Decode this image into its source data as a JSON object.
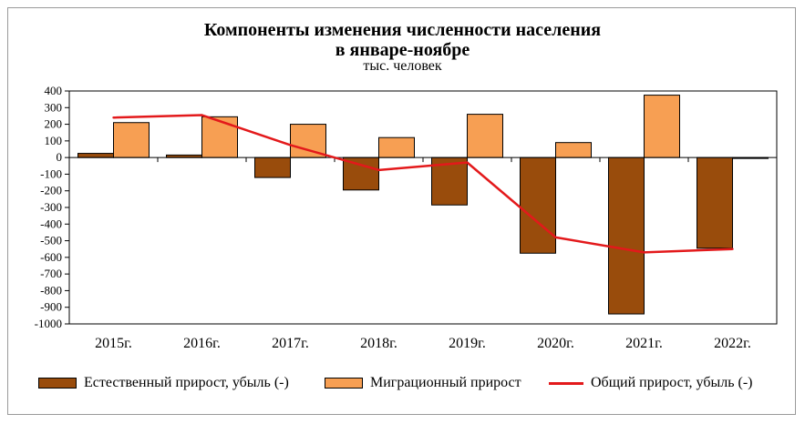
{
  "chart_data": {
    "type": "bar",
    "title_line1": "Компоненты изменения численности населения",
    "title_line2": "в январе-ноябре",
    "subtitle": "тыс. человек",
    "categories": [
      "2015г.",
      "2016г.",
      "2017г.",
      "2018г.",
      "2019г.",
      "2020г.",
      "2021г.",
      "2022г."
    ],
    "ylim": [
      -1000,
      400
    ],
    "yticks": [
      400,
      300,
      200,
      100,
      0,
      -100,
      -200,
      -300,
      -400,
      -500,
      -600,
      -700,
      -800,
      -900,
      -1000
    ],
    "grid": false,
    "legend_position": "bottom",
    "series": [
      {
        "name": "Естественный прирост, убыль (-)",
        "type": "bar",
        "color": "#994c0c",
        "values": [
          25,
          15,
          -120,
          -195,
          -285,
          -575,
          -940,
          -545
        ]
      },
      {
        "name": "Миграционный прирост",
        "type": "bar",
        "color": "#f79f53",
        "values": [
          210,
          245,
          200,
          120,
          260,
          90,
          375,
          -5
        ]
      },
      {
        "name": "Общий прирост, убыль (-)",
        "type": "line",
        "color": "#e3191b",
        "values": [
          240,
          255,
          75,
          -75,
          -30,
          -480,
          -570,
          -550
        ]
      }
    ]
  }
}
